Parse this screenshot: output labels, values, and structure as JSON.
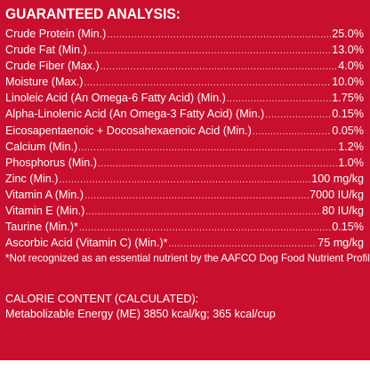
{
  "title": "GUARANTEED ANALYSIS:",
  "rows": [
    {
      "label": "Crude Protein (Min.)",
      "value": "25.0%"
    },
    {
      "label": "Crude Fat (Min.)",
      "value": "13.0%"
    },
    {
      "label": "Crude Fiber (Max.)",
      "value": "4.0%"
    },
    {
      "label": "Moisture (Max.)",
      "value": "10.0%"
    },
    {
      "label": "Linoleic Acid (An Omega-6 Fatty Acid) (Min.)",
      "value": "1.75%"
    },
    {
      "label": "Alpha-Linolenic Acid (An Omega-3 Fatty Acid) (Min.)",
      "value": "0.15%"
    },
    {
      "label": "Eicosapentaenoic + Docosahexaenoic Acid (Min.)",
      "value": "0.05%"
    },
    {
      "label": "Calcium (Min.)",
      "value": "1.2%"
    },
    {
      "label": "Phosphorus (Min.)",
      "value": "1.0%"
    },
    {
      "label": "Zinc (Min.)",
      "value": "100 mg/kg"
    },
    {
      "label": "Vitamin A (Min.)",
      "value": "7000 IU/kg"
    },
    {
      "label": "Vitamin E (Min.)",
      "value": "80 IU/kg"
    },
    {
      "label": "Taurine (Min.)*",
      "value": "0.15%"
    },
    {
      "label": "Ascorbic Acid (Vitamin C) (Min.)*",
      "value": "75 mg/kg"
    }
  ],
  "footnote": "*Not recognized as an essential nutrient by the AAFCO Dog Food Nutrient Profiles.",
  "calorie": {
    "heading": "CALORIE CONTENT (CALCULATED):",
    "line": "Metabolizable Energy (ME) 3850 kcal/kg; 365 kcal/cup"
  },
  "colors": {
    "panel_background": "#c8102e",
    "text": "#ffffff",
    "page_background": "#ffffff"
  }
}
